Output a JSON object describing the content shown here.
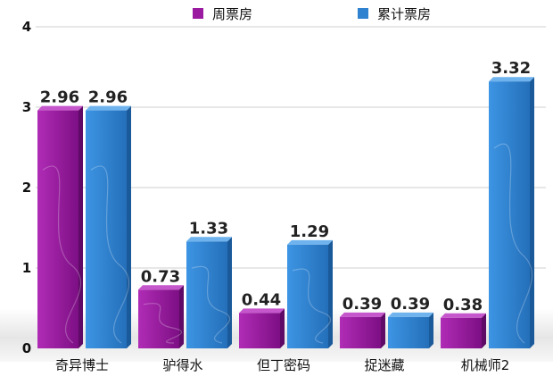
{
  "chart_data": {
    "type": "bar",
    "categories": [
      "奇异博士",
      "驴得水",
      "但丁密码",
      "捉迷藏",
      "机械师2"
    ],
    "series": [
      {
        "name": "周票房",
        "values": [
          2.96,
          0.73,
          0.44,
          0.39,
          0.38
        ],
        "color": "#9a1aa0"
      },
      {
        "name": "累计票房",
        "values": [
          2.96,
          1.33,
          1.29,
          0.39,
          3.32
        ],
        "color": "#2f82d0"
      }
    ],
    "value_labels": [
      [
        "2.96",
        "0.73",
        "0.44",
        "0.39",
        "0.38"
      ],
      [
        "2.96",
        "1.33",
        "1.29",
        "0.39",
        "3.32"
      ]
    ],
    "yticks": [
      "0",
      "1",
      "2",
      "3",
      "4"
    ],
    "ylim": [
      0,
      4
    ],
    "grid": true,
    "legend_position": "top"
  }
}
